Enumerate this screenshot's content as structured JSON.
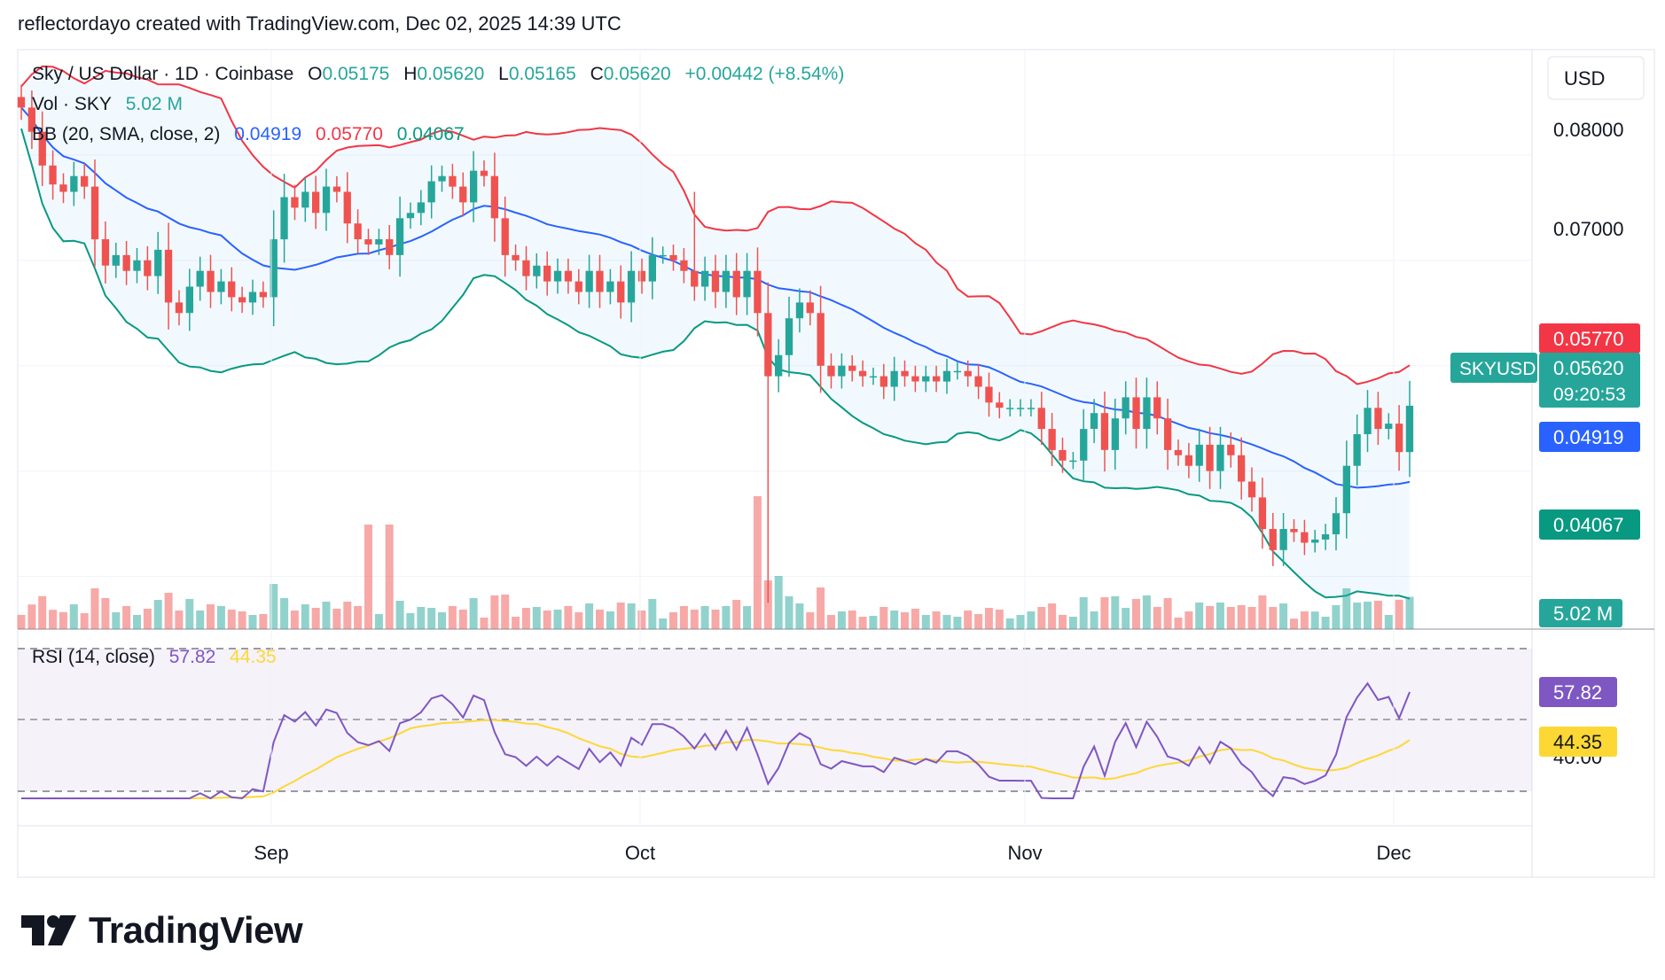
{
  "header": {
    "credit": "reflectordayo created with TradingView.com, Dec 02, 2025 14:39 UTC"
  },
  "legend": {
    "symbol": "Sky / US Dollar · 1D · Coinbase",
    "o_label": "O",
    "o_value": "0.05175",
    "h_label": "H",
    "h_value": "0.05620",
    "l_label": "L",
    "l_value": "0.05165",
    "c_label": "C",
    "c_value": "0.05620",
    "change": "+0.00442 (+8.54%)",
    "vol_label": "Vol · SKY",
    "vol_value": "5.02 M",
    "bb_label": "BB (20, SMA, close, 2)",
    "bb_basis": "0.04919",
    "bb_upper": "0.05770",
    "bb_lower": "0.04067",
    "rsi_label": "RSI (14, close)",
    "rsi_value": "57.82",
    "rsi_ma": "44.35"
  },
  "price_axis": {
    "currency": "USD",
    "ticks": [
      "0.08000",
      "0.07000"
    ],
    "badges": {
      "bb_upper": "0.05770",
      "symbol": "SKYUSD",
      "last": "0.05620",
      "countdown": "09:20:53",
      "bb_basis": "0.04919",
      "bb_lower": "0.04067",
      "volume": "5.02 M"
    }
  },
  "rsi_axis": {
    "tick": "40.00",
    "rsi_badge": "57.82",
    "ma_badge": "44.35"
  },
  "time_axis": [
    "Sep",
    "Oct",
    "Nov",
    "Dec"
  ],
  "brand": "TradingView",
  "colors": {
    "up": "#26a69a",
    "down": "#ef5350",
    "bb_upper": "#f23645",
    "bb_basis": "#2962ff",
    "bb_lower": "#089981",
    "rsi": "#7e57c2",
    "rsi_ma": "#fdd835"
  },
  "chart_data": {
    "type": "candlestick",
    "title": "Sky / US Dollar · 1D · Coinbase",
    "y_range": [
      0.035,
      0.09
    ],
    "date_ticks": [
      "Sep",
      "Oct",
      "Nov",
      "Dec"
    ],
    "closes": [
      0.0845,
      0.0822,
      0.079,
      0.0772,
      0.0765,
      0.078,
      0.077,
      0.072,
      0.0695,
      0.0705,
      0.069,
      0.07,
      0.0685,
      0.071,
      0.066,
      0.065,
      0.0675,
      0.069,
      0.067,
      0.068,
      0.0665,
      0.066,
      0.067,
      0.0665,
      0.072,
      0.076,
      0.075,
      0.0765,
      0.0745,
      0.077,
      0.0765,
      0.0735,
      0.072,
      0.0715,
      0.072,
      0.0705,
      0.074,
      0.0745,
      0.0755,
      0.0775,
      0.078,
      0.077,
      0.0755,
      0.0785,
      0.078,
      0.074,
      0.0705,
      0.07,
      0.0685,
      0.0695,
      0.068,
      0.069,
      0.068,
      0.067,
      0.069,
      0.067,
      0.068,
      0.066,
      0.069,
      0.068,
      0.0705,
      0.0705,
      0.07,
      0.069,
      0.0675,
      0.069,
      0.067,
      0.069,
      0.0665,
      0.069,
      0.065,
      0.059,
      0.061,
      0.0645,
      0.066,
      0.065,
      0.06,
      0.059,
      0.06,
      0.0595,
      0.059,
      0.059,
      0.058,
      0.0595,
      0.059,
      0.0585,
      0.059,
      0.0585,
      0.0595,
      0.0595,
      0.059,
      0.058,
      0.0565,
      0.056,
      0.056,
      0.056,
      0.056,
      0.054,
      0.052,
      0.051,
      0.051,
      0.054,
      0.0555,
      0.052,
      0.055,
      0.057,
      0.054,
      0.057,
      0.055,
      0.052,
      0.0515,
      0.0505,
      0.0525,
      0.05,
      0.0525,
      0.0515,
      0.049,
      0.0475,
      0.0445,
      0.0425,
      0.0445,
      0.0442,
      0.0432,
      0.0435,
      0.044,
      0.046,
      0.0505,
      0.0535,
      0.056,
      0.054,
      0.0545,
      0.0518,
      0.0562
    ],
    "rsi": {
      "name": "RSI (14, close)",
      "last": 57.82,
      "ma_last": 44.35,
      "bands": [
        30,
        70
      ],
      "midline": 50
    },
    "bollinger": {
      "name": "BB (20, SMA, close, 2)",
      "basis": 0.04919,
      "upper": 0.0577,
      "lower": 0.04067
    },
    "volume_last": "5.02 M"
  }
}
